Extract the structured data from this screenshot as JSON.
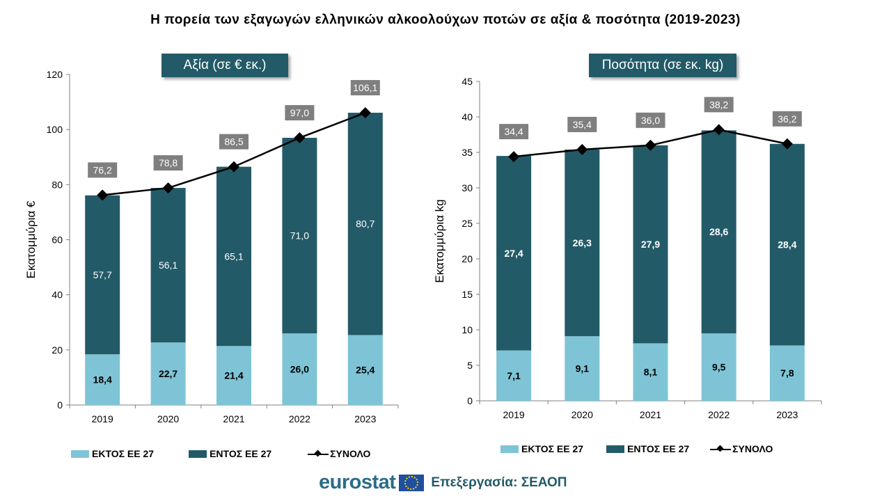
{
  "title": "Η πορεία των εξαγωγών ελληνικών αλκοολούχων ποτών σε αξία & ποσότητα (2019-2023)",
  "colors": {
    "outside_eu": "#7ec4d6",
    "inside_eu": "#235a68",
    "total": "#000000",
    "label_box": "#7f7f7f"
  },
  "legend": {
    "outside": "ΕΚΤΟΣ ΕΕ 27",
    "inside": "ΕΝΤΟΣ ΕΕ 27",
    "total": "ΣΥΝΟΛΟ"
  },
  "footer": {
    "brand": "eurostat",
    "credit": "Επεξεργασία: ΣΕΑΟΠ",
    "icon": "eu-flag-icon"
  },
  "chart_data": [
    {
      "type": "bar",
      "subtype": "stacked-with-line",
      "title": "Αξία (σε € εκ.)",
      "ylabel": "Εκατομμύρια €",
      "xlabel": "",
      "ylim": [
        0,
        120
      ],
      "yticks": [
        0,
        20,
        40,
        60,
        80,
        100,
        120
      ],
      "categories": [
        "2019",
        "2020",
        "2021",
        "2022",
        "2023"
      ],
      "series": [
        {
          "name": "ΕΚΤΟΣ ΕΕ 27",
          "values": [
            18.4,
            22.7,
            21.4,
            26.0,
            25.4
          ],
          "labels": [
            "18,4",
            "22,7",
            "21,4",
            "26,0",
            "25,4"
          ]
        },
        {
          "name": "ΕΝΤΟΣ ΕΕ 27",
          "values": [
            57.7,
            56.1,
            65.1,
            71.0,
            80.7
          ],
          "labels": [
            "57,7",
            "56,1",
            "65,1",
            "71,0",
            "80,7"
          ]
        },
        {
          "name": "ΣΥΝΟΛΟ",
          "values": [
            76.2,
            78.8,
            86.5,
            97.0,
            106.1
          ],
          "labels": [
            "76,2",
            "78,8",
            "86,5",
            "97,0",
            "106,1"
          ]
        }
      ],
      "legend": "bottom",
      "grid": false
    },
    {
      "type": "bar",
      "subtype": "stacked-with-line",
      "title": "Ποσότητα (σε εκ. kg)",
      "ylabel": "Εκατομμύρια kg",
      "xlabel": "",
      "ylim": [
        0,
        45
      ],
      "yticks": [
        0,
        5,
        10,
        15,
        20,
        25,
        30,
        35,
        40,
        45
      ],
      "categories": [
        "2019",
        "2020",
        "2021",
        "2022",
        "2023"
      ],
      "series": [
        {
          "name": "ΕΚΤΟΣ ΕΕ 27",
          "values": [
            7.1,
            9.1,
            8.1,
            9.5,
            7.8
          ],
          "labels": [
            "7,1",
            "9,1",
            "8,1",
            "9,5",
            "7,8"
          ]
        },
        {
          "name": "ΕΝΤΟΣ ΕΕ 27",
          "values": [
            27.4,
            26.3,
            27.9,
            28.6,
            28.4
          ],
          "labels": [
            "27,4",
            "26,3",
            "27,9",
            "28,6",
            "28,4"
          ]
        },
        {
          "name": "ΣΥΝΟΛΟ",
          "values": [
            34.4,
            35.4,
            36.0,
            38.2,
            36.2
          ],
          "labels": [
            "34,4",
            "35,4",
            "36,0",
            "38,2",
            "36,2"
          ]
        }
      ],
      "legend": "bottom",
      "grid": false
    }
  ]
}
